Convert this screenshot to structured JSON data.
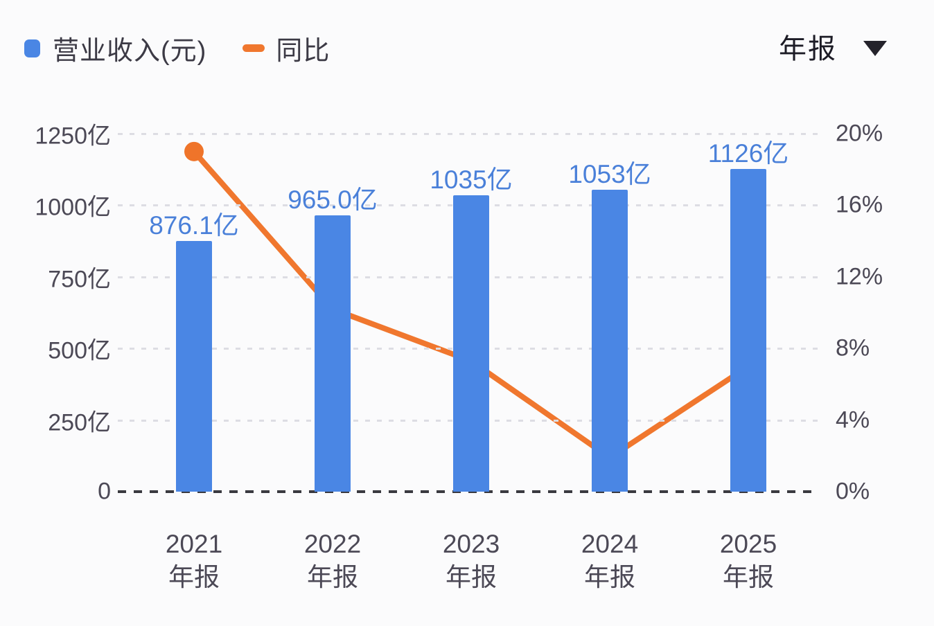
{
  "legend": {
    "revenue_label": "营业收入(元)",
    "yoy_label": "同比"
  },
  "period_selector": {
    "value": "年报"
  },
  "colors": {
    "bar": "#4a86e4",
    "bar_label": "#4a80d9",
    "line": "#f0772e",
    "point": "#ef742a",
    "axis_text": "#4c4956",
    "legend_text": "#3c3a45",
    "grid": "#dddde3",
    "zero_line": "#3a3a40",
    "background": "#fbfbfc"
  },
  "chart_data": {
    "type": "bar+line",
    "title": "",
    "categories": [
      {
        "line1": "2021",
        "line2": "年报"
      },
      {
        "line1": "2022",
        "line2": "年报"
      },
      {
        "line1": "2023",
        "line2": "年报"
      },
      {
        "line1": "2024",
        "line2": "年报"
      },
      {
        "line1": "2025",
        "line2": "年报"
      }
    ],
    "bar_series": {
      "name": "营业收入(元)",
      "unit": "亿",
      "values": [
        876.1,
        965.0,
        1035,
        1053,
        1126
      ],
      "labels": [
        "876.1亿",
        "965.0亿",
        "1035亿",
        "1053亿",
        "1126亿"
      ]
    },
    "line_series": {
      "name": "同比",
      "unit": "%",
      "values": [
        19.0,
        10.2,
        7.3,
        1.9,
        7.0
      ]
    },
    "left_axis": {
      "label": "营业收入",
      "ticks": [
        "1250亿",
        "1000亿",
        "750亿",
        "500亿",
        "250亿",
        "0"
      ],
      "min": 0,
      "max": 1250
    },
    "right_axis": {
      "label": "同比",
      "ticks": [
        "20%",
        "16%",
        "12%",
        "8%",
        "4%",
        "0%"
      ],
      "min": 0,
      "max": 20
    },
    "grid": true,
    "legend_position": "top-left"
  }
}
